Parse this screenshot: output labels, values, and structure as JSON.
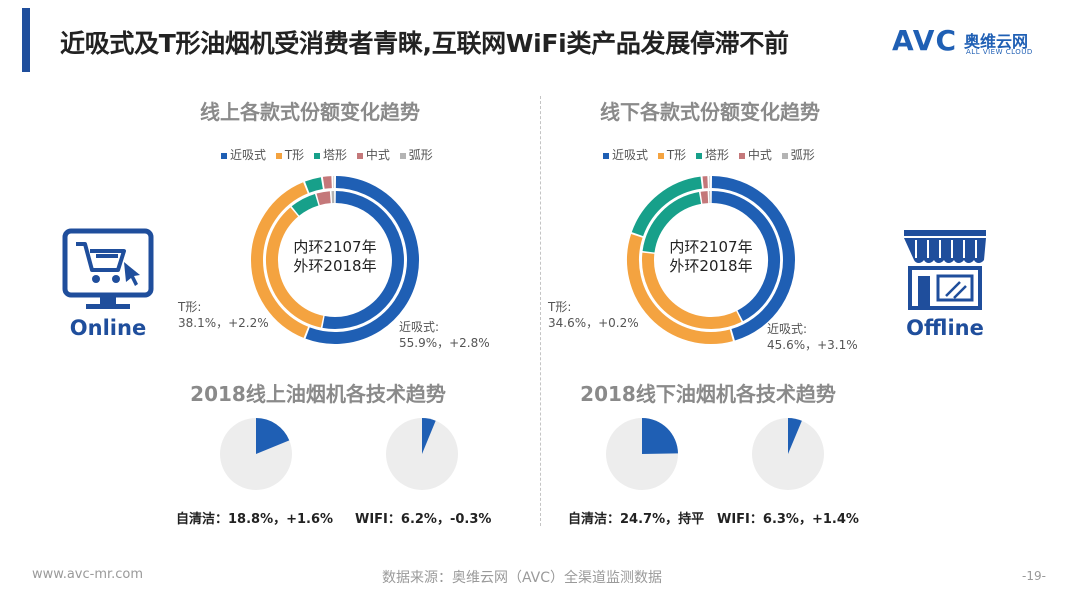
{
  "header": {
    "title": "近吸式及T形油烟机受消费者青睐,互联网WiFi类产品发展停滞不前",
    "logo_brand": "AVC",
    "logo_cn": "奥维云网",
    "logo_en": "ALL VIEW CLOUD"
  },
  "colors": {
    "near_suction": "#1f5fb4",
    "t_shape": "#f4a340",
    "tower": "#17a08a",
    "middle": "#c4787a",
    "arc": "#b4b4b4",
    "pie_fill": "#1f5fb4",
    "pie_bg": "#ededed"
  },
  "left_panel": {
    "icon_label": "Online",
    "center_text_line1": "内环2107年",
    "center_text_line2": "外环2018年",
    "near_label_line1": "近吸式:",
    "near_label_line2": "55.9%，+2.8%",
    "t_label_line1": "T形:",
    "t_label_line2": "38.1%，+2.2%",
    "tech_clean": "自清洁：18.8%，+1.6%",
    "tech_wifi": "WIFI：6.2%，-0.3%"
  },
  "right_panel": {
    "icon_label": "Offline",
    "center_text_line1": "内环2107年",
    "center_text_line2": "外环2018年",
    "near_label_line1": "近吸式:",
    "near_label_line2": "45.6%，+3.1%",
    "t_label_line1": "T形:",
    "t_label_line2": "34.6%，+0.2%",
    "tech_clean": "自清洁：24.7%，持平",
    "tech_wifi": "WIFI：6.3%，+1.4%"
  },
  "footer": {
    "url": "www.avc-mr.com",
    "source": "数据来源：奥维云网（AVC）全渠道监测数据",
    "page": "-19-"
  },
  "chart_data": [
    {
      "type": "pie",
      "title": "线上各款式份额变化趋势",
      "legend": [
        "近吸式",
        "T形",
        "塔形",
        "中式",
        "弧形"
      ],
      "series": [
        {
          "name": "2018",
          "values": [
            55.9,
            38.1,
            3.5,
            2.0,
            0.5
          ]
        },
        {
          "name": "2017",
          "values": [
            53.1,
            35.9,
            6.5,
            3.5,
            1.0
          ]
        }
      ]
    },
    {
      "type": "pie",
      "title": "线下各款式份额变化趋势",
      "legend": [
        "近吸式",
        "T形",
        "塔形",
        "中式",
        "弧形"
      ],
      "series": [
        {
          "name": "2018",
          "values": [
            45.6,
            34.6,
            18.0,
            1.3,
            0.5
          ]
        },
        {
          "name": "2017",
          "values": [
            42.5,
            34.4,
            20.5,
            2.0,
            0.6
          ]
        }
      ]
    },
    {
      "type": "pie",
      "title": "2018线上油烟机各技术趋势",
      "categories": [
        "自清洁",
        "WIFI"
      ],
      "values": [
        18.8,
        6.2
      ]
    },
    {
      "type": "pie",
      "title": "2018线下油烟机各技术趋势",
      "categories": [
        "自清洁",
        "WIFI"
      ],
      "values": [
        24.7,
        6.3
      ]
    }
  ]
}
